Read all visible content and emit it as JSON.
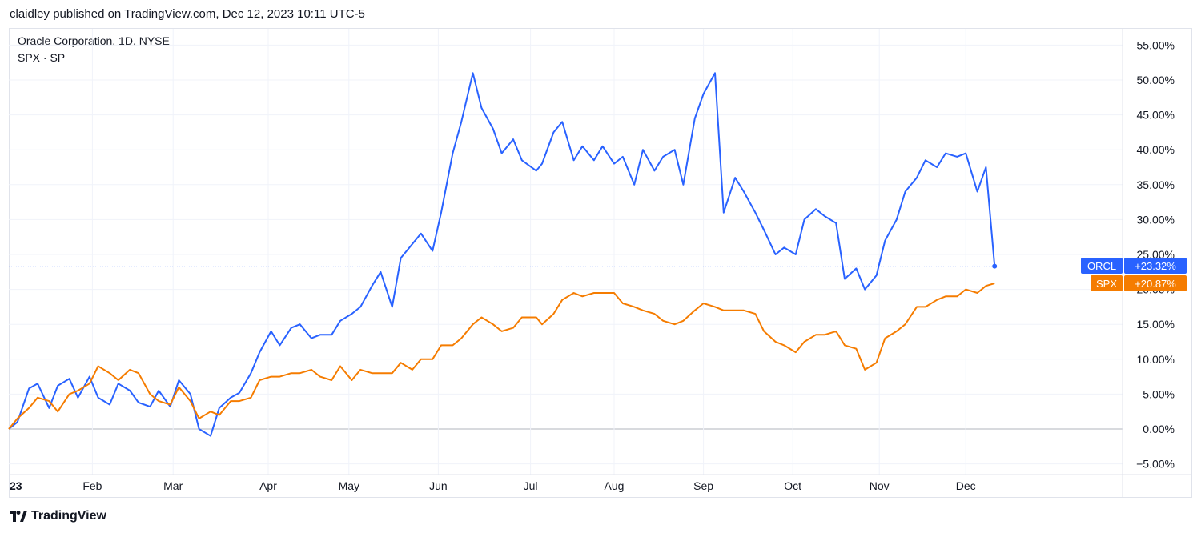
{
  "header": {
    "text": "claidley published on TradingView.com, Dec 12, 2023 10:11 UTC-5"
  },
  "legend": {
    "line1": "Oracle Corporation, 1D, NYSE",
    "line2": "SPX · SP"
  },
  "footer": {
    "brand": "TradingView"
  },
  "colors": {
    "orcl": "#2962ff",
    "spx": "#f57c00",
    "grid": "#f0f3fa",
    "zero": "#b2b5be"
  },
  "chart_data": {
    "type": "line",
    "x_labels": [
      "23",
      "Feb",
      "Mar",
      "Apr",
      "May",
      "Jun",
      "Jul",
      "Aug",
      "Sep",
      "Oct",
      "Nov",
      "Dec"
    ],
    "y_ticks": [
      "55.00%",
      "50.00%",
      "45.00%",
      "40.00%",
      "35.00%",
      "30.00%",
      "25.00%",
      "20.00%",
      "15.00%",
      "10.00%",
      "5.00%",
      "0.00%",
      "−5.00%"
    ],
    "ylim": [
      -5,
      55
    ],
    "series": [
      {
        "name": "ORCL",
        "last_label": "+23.32%",
        "points": [
          [
            "2023-01-03",
            0.0
          ],
          [
            "2023-01-06",
            1.0
          ],
          [
            "2023-01-10",
            5.8
          ],
          [
            "2023-01-13",
            6.5
          ],
          [
            "2023-01-17",
            3.0
          ],
          [
            "2023-01-20",
            6.2
          ],
          [
            "2023-01-24",
            7.2
          ],
          [
            "2023-01-27",
            4.5
          ],
          [
            "2023-01-31",
            7.5
          ],
          [
            "2023-02-03",
            4.5
          ],
          [
            "2023-02-07",
            3.5
          ],
          [
            "2023-02-10",
            6.5
          ],
          [
            "2023-02-14",
            5.5
          ],
          [
            "2023-02-17",
            3.8
          ],
          [
            "2023-02-21",
            3.2
          ],
          [
            "2023-02-24",
            5.5
          ],
          [
            "2023-02-28",
            3.2
          ],
          [
            "2023-03-03",
            7.0
          ],
          [
            "2023-03-07",
            5.0
          ],
          [
            "2023-03-10",
            0.0
          ],
          [
            "2023-03-14",
            -1.0
          ],
          [
            "2023-03-17",
            3.0
          ],
          [
            "2023-03-21",
            4.5
          ],
          [
            "2023-03-24",
            5.2
          ],
          [
            "2023-03-28",
            8.0
          ],
          [
            "2023-03-31",
            11.0
          ],
          [
            "2023-04-04",
            14.0
          ],
          [
            "2023-04-07",
            12.0
          ],
          [
            "2023-04-11",
            14.5
          ],
          [
            "2023-04-14",
            15.0
          ],
          [
            "2023-04-18",
            13.0
          ],
          [
            "2023-04-21",
            13.5
          ],
          [
            "2023-04-25",
            13.5
          ],
          [
            "2023-04-28",
            15.5
          ],
          [
            "2023-05-02",
            16.5
          ],
          [
            "2023-05-05",
            17.5
          ],
          [
            "2023-05-09",
            20.5
          ],
          [
            "2023-05-12",
            22.5
          ],
          [
            "2023-05-16",
            17.5
          ],
          [
            "2023-05-19",
            24.5
          ],
          [
            "2023-05-23",
            26.5
          ],
          [
            "2023-05-26",
            28.0
          ],
          [
            "2023-05-30",
            25.5
          ],
          [
            "2023-06-02",
            31.0
          ],
          [
            "2023-06-06",
            39.5
          ],
          [
            "2023-06-09",
            44.0
          ],
          [
            "2023-06-13",
            51.0
          ],
          [
            "2023-06-16",
            46.0
          ],
          [
            "2023-06-20",
            43.0
          ],
          [
            "2023-06-23",
            39.5
          ],
          [
            "2023-06-27",
            41.5
          ],
          [
            "2023-06-30",
            38.5
          ],
          [
            "2023-07-05",
            37.0
          ],
          [
            "2023-07-07",
            38.0
          ],
          [
            "2023-07-11",
            42.5
          ],
          [
            "2023-07-14",
            44.0
          ],
          [
            "2023-07-18",
            38.5
          ],
          [
            "2023-07-21",
            40.5
          ],
          [
            "2023-07-25",
            38.5
          ],
          [
            "2023-07-28",
            40.5
          ],
          [
            "2023-08-01",
            38.0
          ],
          [
            "2023-08-04",
            39.0
          ],
          [
            "2023-08-08",
            35.0
          ],
          [
            "2023-08-11",
            40.0
          ],
          [
            "2023-08-15",
            37.0
          ],
          [
            "2023-08-18",
            39.0
          ],
          [
            "2023-08-22",
            40.0
          ],
          [
            "2023-08-25",
            35.0
          ],
          [
            "2023-08-29",
            44.5
          ],
          [
            "2023-09-01",
            48.0
          ],
          [
            "2023-09-05",
            51.0
          ],
          [
            "2023-09-08",
            31.0
          ],
          [
            "2023-09-12",
            36.0
          ],
          [
            "2023-09-15",
            34.0
          ],
          [
            "2023-09-19",
            31.0
          ],
          [
            "2023-09-22",
            28.5
          ],
          [
            "2023-09-26",
            25.0
          ],
          [
            "2023-09-29",
            26.0
          ],
          [
            "2023-10-03",
            25.0
          ],
          [
            "2023-10-06",
            30.0
          ],
          [
            "2023-10-10",
            31.5
          ],
          [
            "2023-10-13",
            30.5
          ],
          [
            "2023-10-17",
            29.5
          ],
          [
            "2023-10-20",
            21.5
          ],
          [
            "2023-10-24",
            23.0
          ],
          [
            "2023-10-27",
            20.0
          ],
          [
            "2023-10-31",
            22.0
          ],
          [
            "2023-11-03",
            27.0
          ],
          [
            "2023-11-07",
            30.0
          ],
          [
            "2023-11-10",
            34.0
          ],
          [
            "2023-11-14",
            36.0
          ],
          [
            "2023-11-17",
            38.5
          ],
          [
            "2023-11-21",
            37.5
          ],
          [
            "2023-11-24",
            39.5
          ],
          [
            "2023-11-28",
            39.0
          ],
          [
            "2023-12-01",
            39.5
          ],
          [
            "2023-12-05",
            34.0
          ],
          [
            "2023-12-08",
            37.5
          ],
          [
            "2023-12-11",
            23.32
          ]
        ]
      },
      {
        "name": "SPX",
        "last_label": "+20.87%",
        "points": [
          [
            "2023-01-03",
            0.0
          ],
          [
            "2023-01-06",
            1.5
          ],
          [
            "2023-01-10",
            3.0
          ],
          [
            "2023-01-13",
            4.5
          ],
          [
            "2023-01-17",
            4.0
          ],
          [
            "2023-01-20",
            2.5
          ],
          [
            "2023-01-24",
            5.0
          ],
          [
            "2023-01-27",
            5.5
          ],
          [
            "2023-01-31",
            6.5
          ],
          [
            "2023-02-03",
            9.0
          ],
          [
            "2023-02-07",
            8.0
          ],
          [
            "2023-02-10",
            7.0
          ],
          [
            "2023-02-14",
            8.5
          ],
          [
            "2023-02-17",
            8.0
          ],
          [
            "2023-02-21",
            5.0
          ],
          [
            "2023-02-24",
            4.0
          ],
          [
            "2023-02-28",
            3.5
          ],
          [
            "2023-03-03",
            6.0
          ],
          [
            "2023-03-07",
            4.0
          ],
          [
            "2023-03-10",
            1.5
          ],
          [
            "2023-03-14",
            2.5
          ],
          [
            "2023-03-17",
            2.0
          ],
          [
            "2023-03-21",
            4.0
          ],
          [
            "2023-03-24",
            4.0
          ],
          [
            "2023-03-28",
            4.5
          ],
          [
            "2023-03-31",
            7.0
          ],
          [
            "2023-04-04",
            7.5
          ],
          [
            "2023-04-07",
            7.5
          ],
          [
            "2023-04-11",
            8.0
          ],
          [
            "2023-04-14",
            8.0
          ],
          [
            "2023-04-18",
            8.5
          ],
          [
            "2023-04-21",
            7.5
          ],
          [
            "2023-04-25",
            7.0
          ],
          [
            "2023-04-28",
            9.0
          ],
          [
            "2023-05-02",
            7.0
          ],
          [
            "2023-05-05",
            8.5
          ],
          [
            "2023-05-09",
            8.0
          ],
          [
            "2023-05-12",
            8.0
          ],
          [
            "2023-05-16",
            8.0
          ],
          [
            "2023-05-19",
            9.5
          ],
          [
            "2023-05-23",
            8.5
          ],
          [
            "2023-05-26",
            10.0
          ],
          [
            "2023-05-30",
            10.0
          ],
          [
            "2023-06-02",
            12.0
          ],
          [
            "2023-06-06",
            12.0
          ],
          [
            "2023-06-09",
            13.0
          ],
          [
            "2023-06-13",
            15.0
          ],
          [
            "2023-06-16",
            16.0
          ],
          [
            "2023-06-20",
            15.0
          ],
          [
            "2023-06-23",
            14.0
          ],
          [
            "2023-06-27",
            14.5
          ],
          [
            "2023-06-30",
            16.0
          ],
          [
            "2023-07-05",
            16.0
          ],
          [
            "2023-07-07",
            15.0
          ],
          [
            "2023-07-11",
            16.5
          ],
          [
            "2023-07-14",
            18.5
          ],
          [
            "2023-07-18",
            19.5
          ],
          [
            "2023-07-21",
            19.0
          ],
          [
            "2023-07-25",
            19.5
          ],
          [
            "2023-07-28",
            19.5
          ],
          [
            "2023-08-01",
            19.5
          ],
          [
            "2023-08-04",
            18.0
          ],
          [
            "2023-08-08",
            17.5
          ],
          [
            "2023-08-11",
            17.0
          ],
          [
            "2023-08-15",
            16.5
          ],
          [
            "2023-08-18",
            15.5
          ],
          [
            "2023-08-22",
            15.0
          ],
          [
            "2023-08-25",
            15.5
          ],
          [
            "2023-08-29",
            17.0
          ],
          [
            "2023-09-01",
            18.0
          ],
          [
            "2023-09-05",
            17.5
          ],
          [
            "2023-09-08",
            17.0
          ],
          [
            "2023-09-12",
            17.0
          ],
          [
            "2023-09-15",
            17.0
          ],
          [
            "2023-09-19",
            16.5
          ],
          [
            "2023-09-22",
            14.0
          ],
          [
            "2023-09-26",
            12.5
          ],
          [
            "2023-09-29",
            12.0
          ],
          [
            "2023-10-03",
            11.0
          ],
          [
            "2023-10-06",
            12.5
          ],
          [
            "2023-10-10",
            13.5
          ],
          [
            "2023-10-13",
            13.5
          ],
          [
            "2023-10-17",
            14.0
          ],
          [
            "2023-10-20",
            12.0
          ],
          [
            "2023-10-24",
            11.5
          ],
          [
            "2023-10-27",
            8.5
          ],
          [
            "2023-10-31",
            9.5
          ],
          [
            "2023-11-03",
            13.0
          ],
          [
            "2023-11-07",
            14.0
          ],
          [
            "2023-11-10",
            15.0
          ],
          [
            "2023-11-14",
            17.5
          ],
          [
            "2023-11-17",
            17.5
          ],
          [
            "2023-11-21",
            18.5
          ],
          [
            "2023-11-24",
            19.0
          ],
          [
            "2023-11-28",
            19.0
          ],
          [
            "2023-12-01",
            20.0
          ],
          [
            "2023-12-05",
            19.5
          ],
          [
            "2023-12-08",
            20.5
          ],
          [
            "2023-12-11",
            20.87
          ]
        ]
      }
    ]
  }
}
